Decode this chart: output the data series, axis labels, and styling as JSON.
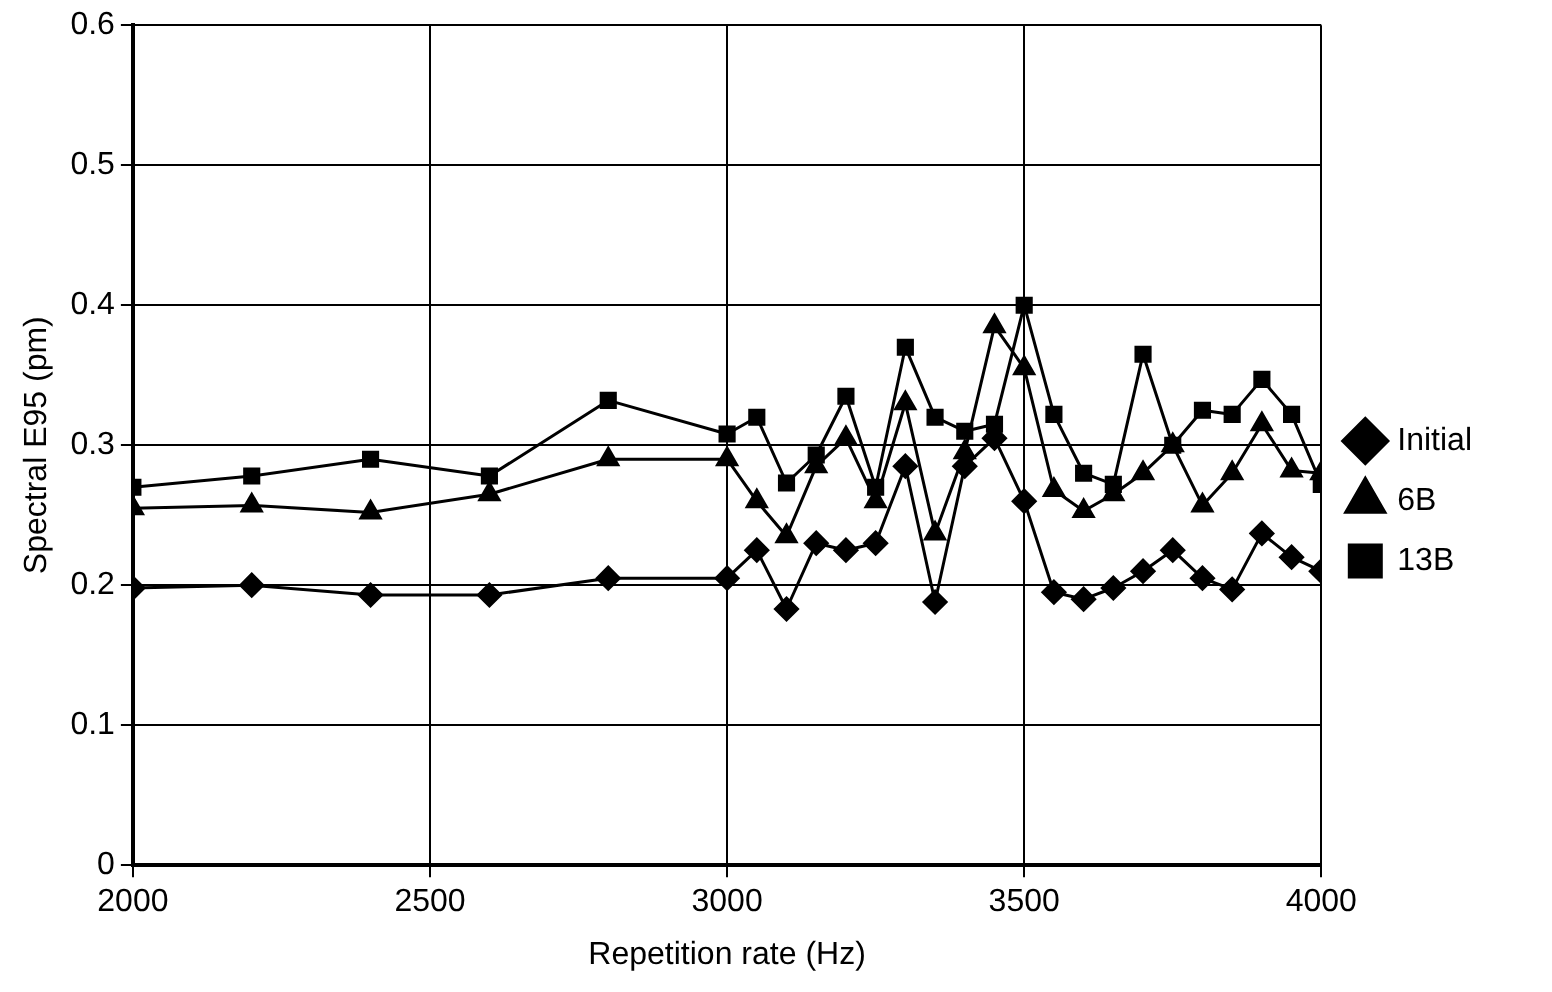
{
  "chart_data": {
    "type": "line",
    "xlabel": "Repetition rate (Hz)",
    "ylabel": "Spectral E95 (pm)",
    "x": [
      2000,
      2200,
      2400,
      2600,
      2800,
      3000,
      3050,
      3100,
      3150,
      3200,
      3250,
      3300,
      3350,
      3400,
      3450,
      3500,
      3550,
      3600,
      3650,
      3700,
      3750,
      3800,
      3850,
      3900,
      3950,
      4000
    ],
    "series": [
      {
        "name": "Initial",
        "color": "#000000",
        "marker": "diamond",
        "values": [
          0.198,
          0.2,
          0.193,
          0.193,
          0.205,
          0.205,
          0.225,
          0.183,
          0.23,
          0.225,
          0.23,
          0.285,
          0.188,
          0.285,
          0.305,
          0.26,
          0.195,
          0.19,
          0.198,
          0.21,
          0.225,
          0.205,
          0.197,
          0.237,
          0.22,
          0.21
        ]
      },
      {
        "name": "6B",
        "color": "#000000",
        "marker": "triangle",
        "values": [
          0.255,
          0.257,
          0.252,
          0.265,
          0.29,
          0.29,
          0.26,
          0.235,
          0.285,
          0.305,
          0.26,
          0.33,
          0.237,
          0.295,
          0.385,
          0.355,
          0.268,
          0.253,
          0.265,
          0.28,
          0.3,
          0.257,
          0.28,
          0.315,
          0.282,
          0.28
        ]
      },
      {
        "name": "13B",
        "color": "#000000",
        "marker": "square",
        "values": [
          0.27,
          0.278,
          0.29,
          0.278,
          0.332,
          0.308,
          0.32,
          0.273,
          0.293,
          0.335,
          0.27,
          0.37,
          0.32,
          0.31,
          0.315,
          0.4,
          0.322,
          0.28,
          0.272,
          0.365,
          0.3,
          0.325,
          0.322,
          0.347,
          0.322,
          0.272
        ]
      }
    ],
    "xlim": [
      2000,
      4000
    ],
    "xticks": [
      2000,
      2500,
      3000,
      3500,
      4000
    ],
    "ylim": [
      0,
      0.6
    ],
    "yticks": [
      {
        "value": 0,
        "label": "0"
      },
      0.1,
      0.2,
      0.3,
      0.4,
      0.5,
      0.6
    ],
    "grid": true,
    "legend": "right",
    "line_style": "solid"
  }
}
